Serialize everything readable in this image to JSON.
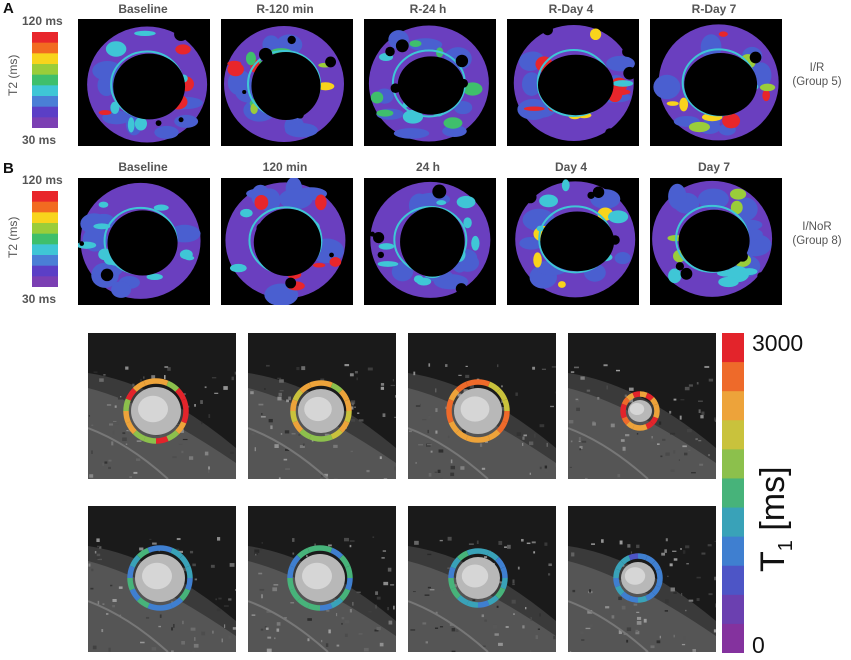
{
  "panel_a": {
    "letter": "A",
    "scale_max": "120 ms",
    "scale_min": "30 ms",
    "axis_title": "T2 (ms)",
    "columns": [
      "Baseline",
      "R-120 min",
      "R-24 h",
      "R-Day 4",
      "R-Day 7"
    ],
    "group_line1": "I/R",
    "group_line2": "(Group 5)"
  },
  "panel_b": {
    "letter": "B",
    "scale_max": "120 ms",
    "scale_min": "30 ms",
    "axis_title": "T2 (ms)",
    "columns": [
      "Baseline",
      "120 min",
      "24 h",
      "Day 4",
      "Day 7"
    ],
    "group_line1": "I/NoR",
    "group_line2": "(Group 8)"
  },
  "t1_colorbar": {
    "max": "3000",
    "min": "0",
    "title": "T",
    "title_sub": "1",
    "title_unit": " [ms]"
  },
  "colors": {
    "t2_scale": [
      "#e8262b",
      "#f26b21",
      "#f8d41c",
      "#9acd3a",
      "#3fbf6c",
      "#3fc6d6",
      "#4a7fd6",
      "#5b3fc6",
      "#7b3fb3"
    ],
    "t1_scale": [
      "#e3242b",
      "#ee6a2a",
      "#eda33a",
      "#c9c23c",
      "#8cc04c",
      "#47b37a",
      "#39a2b8",
      "#3f7fd0",
      "#4d55c6",
      "#6b40b0",
      "#84329e"
    ]
  }
}
